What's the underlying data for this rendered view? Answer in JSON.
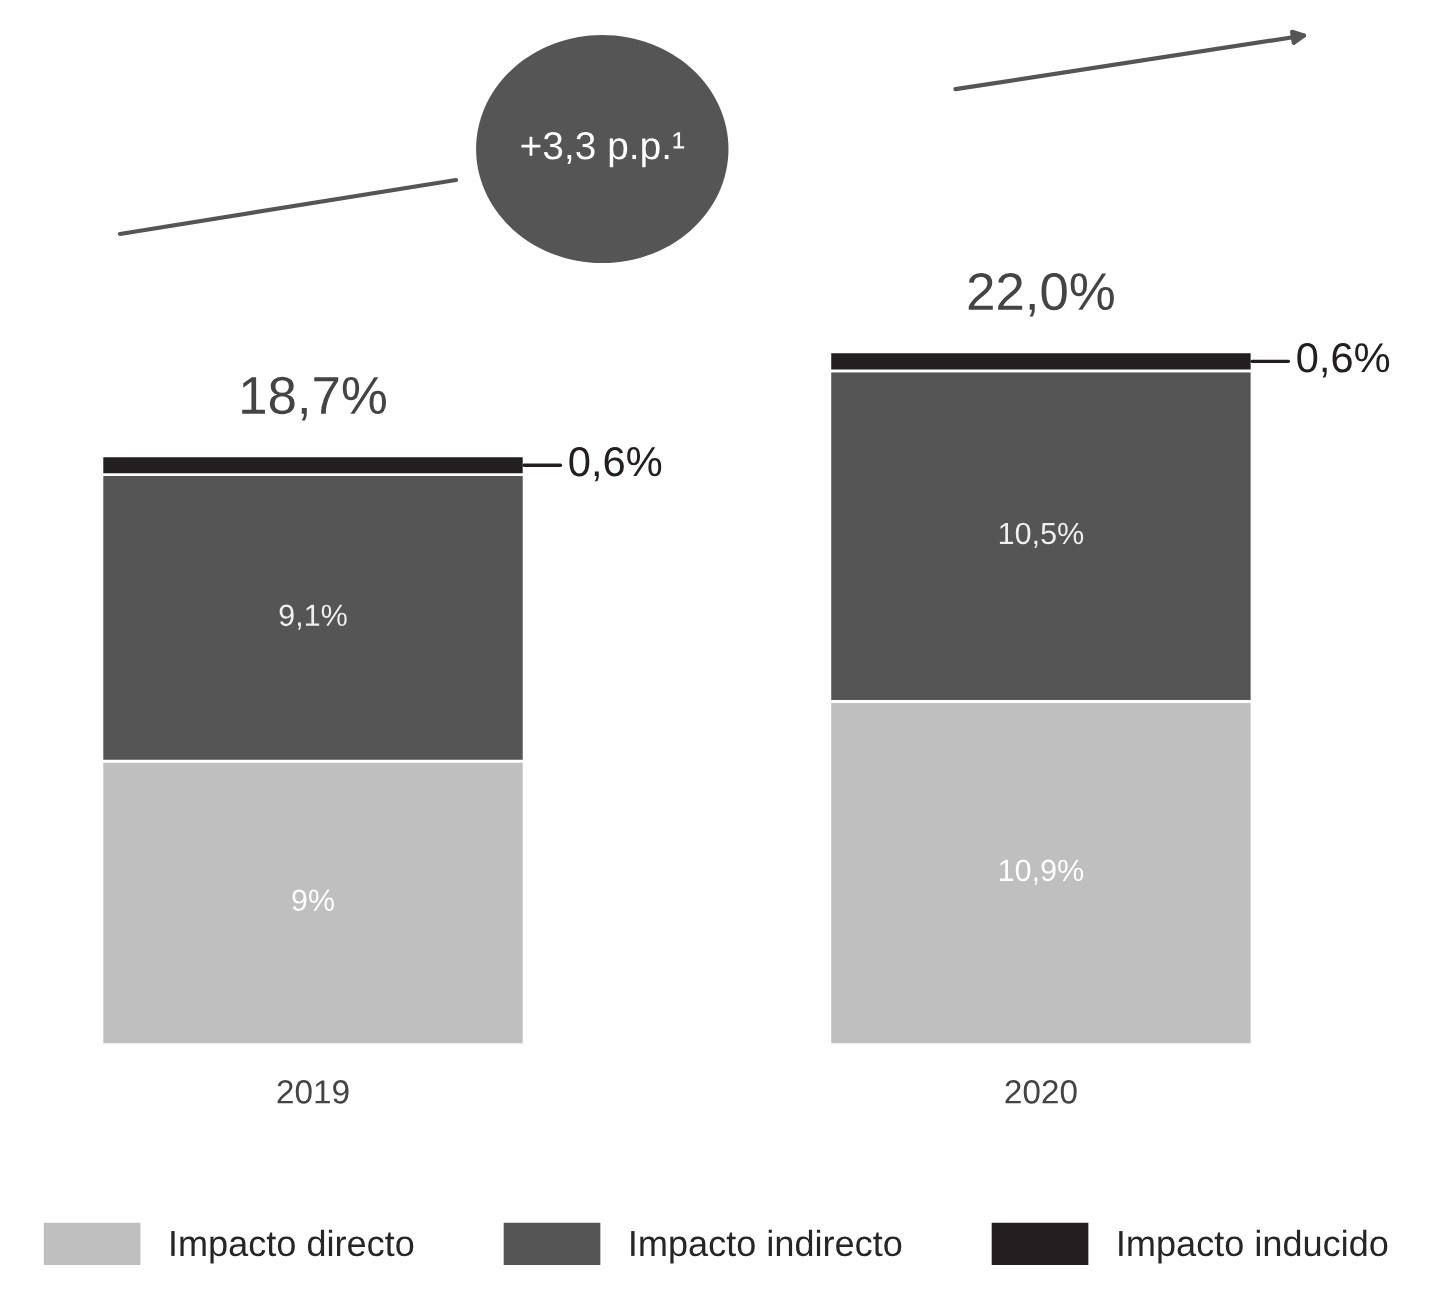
{
  "chart_data": {
    "type": "bar",
    "stacked": true,
    "categories": [
      "2019",
      "2020"
    ],
    "series": [
      {
        "name": "Impacto directo",
        "color": "#bfbfbf",
        "values": [
          9,
          10.9
        ],
        "value_labels": [
          "9%",
          "10,9%"
        ]
      },
      {
        "name": "Impacto indirecto",
        "color": "#555555",
        "values": [
          9.1,
          10.5
        ],
        "value_labels": [
          "9,1%",
          "10,5%"
        ]
      },
      {
        "name": "Impacto inducido",
        "color": "#231f20",
        "values": [
          0.6,
          0.6
        ],
        "value_labels": [
          "0,6%",
          "0,6%"
        ]
      }
    ],
    "totals": [
      "18,7%",
      "22,0%"
    ],
    "annotations": [
      "+3,3 p.p.¹"
    ],
    "legend": "bottom"
  }
}
